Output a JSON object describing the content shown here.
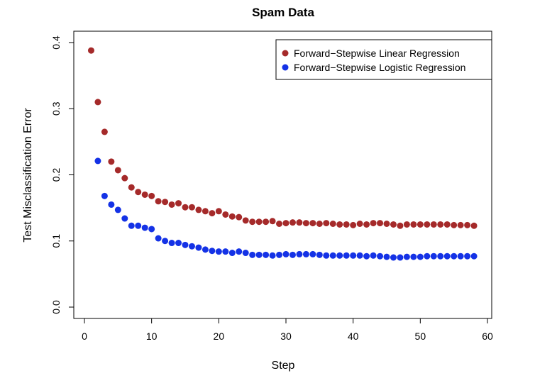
{
  "chart_data": {
    "type": "scatter",
    "title": "Spam Data",
    "xlabel": "Step",
    "ylabel": "Test Misclassification Error",
    "xlim": [
      0,
      60
    ],
    "ylim": [
      0,
      0.4
    ],
    "xticks": [
      0,
      10,
      20,
      30,
      40,
      50,
      60
    ],
    "yticks": [
      0.0,
      0.1,
      0.2,
      0.3,
      0.4
    ],
    "xtick_labels": [
      "0",
      "10",
      "20",
      "30",
      "40",
      "50",
      "60"
    ],
    "ytick_labels": [
      "0.0",
      "0.1",
      "0.2",
      "0.3",
      "0.4"
    ],
    "grid": false,
    "legend_position": "top-right",
    "series": [
      {
        "name": "Forward−Stepwise Linear Regression",
        "color": "#A52A2A",
        "x": [
          1,
          2,
          3,
          4,
          5,
          6,
          7,
          8,
          9,
          10,
          11,
          12,
          13,
          14,
          15,
          16,
          17,
          18,
          19,
          20,
          21,
          22,
          23,
          24,
          25,
          26,
          27,
          28,
          29,
          30,
          31,
          32,
          33,
          34,
          35,
          36,
          37,
          38,
          39,
          40,
          41,
          42,
          43,
          44,
          45,
          46,
          47,
          48,
          49,
          50,
          51,
          52,
          53,
          54,
          55,
          56,
          57,
          58
        ],
        "y": [
          0.388,
          0.31,
          0.265,
          0.22,
          0.207,
          0.195,
          0.181,
          0.174,
          0.17,
          0.168,
          0.16,
          0.159,
          0.155,
          0.157,
          0.151,
          0.151,
          0.147,
          0.145,
          0.142,
          0.145,
          0.14,
          0.137,
          0.136,
          0.131,
          0.129,
          0.129,
          0.129,
          0.13,
          0.126,
          0.127,
          0.128,
          0.128,
          0.127,
          0.127,
          0.126,
          0.127,
          0.126,
          0.125,
          0.125,
          0.124,
          0.126,
          0.125,
          0.127,
          0.127,
          0.126,
          0.125,
          0.123,
          0.125,
          0.125,
          0.125,
          0.125,
          0.125,
          0.125,
          0.125,
          0.124,
          0.124,
          0.124,
          0.123
        ]
      },
      {
        "name": "Forward−Stepwise Logistic Regression",
        "color": "#1432E6",
        "x": [
          2,
          3,
          4,
          5,
          6,
          7,
          8,
          9,
          10,
          11,
          12,
          13,
          14,
          15,
          16,
          17,
          18,
          19,
          20,
          21,
          22,
          23,
          24,
          25,
          26,
          27,
          28,
          29,
          30,
          31,
          32,
          33,
          34,
          35,
          36,
          37,
          38,
          39,
          40,
          41,
          42,
          43,
          44,
          45,
          46,
          47,
          48,
          49,
          50,
          51,
          52,
          53,
          54,
          55,
          56,
          57,
          58
        ],
        "y": [
          0.221,
          0.168,
          0.155,
          0.147,
          0.134,
          0.123,
          0.123,
          0.12,
          0.118,
          0.104,
          0.1,
          0.097,
          0.097,
          0.094,
          0.092,
          0.09,
          0.087,
          0.085,
          0.084,
          0.084,
          0.082,
          0.084,
          0.082,
          0.079,
          0.079,
          0.079,
          0.078,
          0.079,
          0.08,
          0.079,
          0.08,
          0.08,
          0.08,
          0.079,
          0.078,
          0.078,
          0.078,
          0.078,
          0.078,
          0.078,
          0.077,
          0.078,
          0.077,
          0.076,
          0.075,
          0.075,
          0.076,
          0.076,
          0.076,
          0.077,
          0.077,
          0.077,
          0.077,
          0.077,
          0.077,
          0.077,
          0.077
        ]
      }
    ]
  }
}
